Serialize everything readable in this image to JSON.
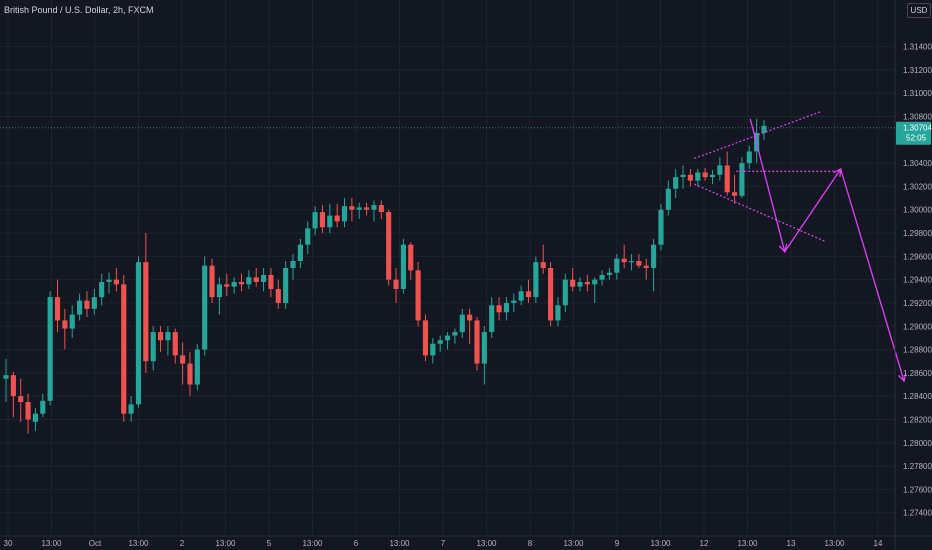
{
  "header": {
    "title": "British Pound / U.S. Dollar, 2h, FXCM"
  },
  "currency_button": {
    "label": "USD"
  },
  "colors": {
    "background": "#131722",
    "grid": "#1e222d",
    "up": "#26a69a",
    "down": "#ef5350",
    "axis_text": "#b2b5be",
    "drawing": "#e040fb",
    "price_line": "#26a69a"
  },
  "chart_data": {
    "type": "candlestick",
    "title": "British Pound / U.S. Dollar, 2h, FXCM",
    "ylim": [
      1.272,
      1.318
    ],
    "y_ticks": [
      "1.31400",
      "1.31200",
      "1.31000",
      "1.30800",
      "1.30400",
      "1.30200",
      "1.30000",
      "1.29800",
      "1.29600",
      "1.29400",
      "1.29200",
      "1.29000",
      "1.28800",
      "1.28600",
      "1.28400",
      "1.28200",
      "1.28000",
      "1.27800",
      "1.27600",
      "1.27400"
    ],
    "y_tick_values": [
      1.314,
      1.312,
      1.31,
      1.308,
      1.304,
      1.302,
      1.3,
      1.298,
      1.296,
      1.294,
      1.292,
      1.29,
      1.288,
      1.286,
      1.284,
      1.282,
      1.28,
      1.278,
      1.276,
      1.274
    ],
    "x_ticks": [
      "30",
      "13:00",
      "Oct",
      "13:00",
      "2",
      "13:00",
      "5",
      "13:00",
      "6",
      "13:00",
      "7",
      "13:00",
      "8",
      "13:00",
      "9",
      "13:00",
      "12",
      "13:00",
      "13",
      "13:00",
      "14"
    ],
    "current_price": "1.30704",
    "countdown": "52:05",
    "grid": true,
    "ohlc": [
      [
        1.2855,
        1.2872,
        1.2835,
        1.2858
      ],
      [
        1.2858,
        1.2861,
        1.2822,
        1.284
      ],
      [
        1.284,
        1.2855,
        1.2818,
        1.2835
      ],
      [
        1.2835,
        1.2842,
        1.2808,
        1.282
      ],
      [
        1.2818,
        1.283,
        1.281,
        1.2825
      ],
      [
        1.2825,
        1.2842,
        1.2822,
        1.2836
      ],
      [
        1.2836,
        1.293,
        1.2832,
        1.2925
      ],
      [
        1.2925,
        1.294,
        1.2895,
        1.2905
      ],
      [
        1.2905,
        1.2915,
        1.288,
        1.2898
      ],
      [
        1.2898,
        1.2918,
        1.289,
        1.291
      ],
      [
        1.291,
        1.2928,
        1.2905,
        1.2922
      ],
      [
        1.2922,
        1.293,
        1.2908,
        1.2915
      ],
      [
        1.2915,
        1.2932,
        1.291,
        1.2925
      ],
      [
        1.2925,
        1.2945,
        1.2918,
        1.2938
      ],
      [
        1.2938,
        1.2946,
        1.2928,
        1.294
      ],
      [
        1.294,
        1.295,
        1.293,
        1.2936
      ],
      [
        1.2936,
        1.2944,
        1.2818,
        1.2825
      ],
      [
        1.2825,
        1.284,
        1.2818,
        1.2833
      ],
      [
        1.2833,
        1.296,
        1.283,
        1.2955
      ],
      [
        1.2955,
        1.298,
        1.286,
        1.287
      ],
      [
        1.287,
        1.29,
        1.2862,
        1.2895
      ],
      [
        1.2895,
        1.29,
        1.2878,
        1.2888
      ],
      [
        1.2888,
        1.29,
        1.2875,
        1.2895
      ],
      [
        1.2895,
        1.2898,
        1.2868,
        1.2875
      ],
      [
        1.2875,
        1.2886,
        1.285,
        1.2868
      ],
      [
        1.2868,
        1.2878,
        1.284,
        1.285
      ],
      [
        1.285,
        1.2885,
        1.2845,
        1.288
      ],
      [
        1.288,
        1.296,
        1.2875,
        1.2952
      ],
      [
        1.2952,
        1.2958,
        1.292,
        1.2925
      ],
      [
        1.2925,
        1.2942,
        1.291,
        1.2936
      ],
      [
        1.2936,
        1.2945,
        1.2926,
        1.2934
      ],
      [
        1.2934,
        1.2942,
        1.2928,
        1.2938
      ],
      [
        1.2938,
        1.2945,
        1.293,
        1.2936
      ],
      [
        1.2936,
        1.2948,
        1.2932,
        1.2942
      ],
      [
        1.2942,
        1.295,
        1.2934,
        1.2938
      ],
      [
        1.2938,
        1.295,
        1.293,
        1.2944
      ],
      [
        1.2944,
        1.295,
        1.2925,
        1.2932
      ],
      [
        1.2932,
        1.294,
        1.2915,
        1.292
      ],
      [
        1.292,
        1.2956,
        1.2915,
        1.295
      ],
      [
        1.295,
        1.2962,
        1.294,
        1.2956
      ],
      [
        1.2956,
        1.2975,
        1.295,
        1.297
      ],
      [
        1.297,
        1.299,
        1.2962,
        1.2984
      ],
      [
        1.2984,
        1.3003,
        1.2978,
        1.2998
      ],
      [
        1.2998,
        1.3004,
        1.298,
        1.2985
      ],
      [
        1.2985,
        1.3005,
        1.298,
        1.2995
      ],
      [
        1.2995,
        1.3005,
        1.2985,
        1.299
      ],
      [
        1.299,
        1.301,
        1.2985,
        1.3003
      ],
      [
        1.3003,
        1.301,
        1.299,
        1.3
      ],
      [
        1.3,
        1.3006,
        1.2992,
        1.3002
      ],
      [
        1.3002,
        1.3006,
        1.2995,
        1.3
      ],
      [
        1.3,
        1.3008,
        1.299,
        1.3004
      ],
      [
        1.3004,
        1.3008,
        1.2992,
        1.2998
      ],
      [
        1.2998,
        1.3,
        1.2935,
        1.294
      ],
      [
        1.294,
        1.295,
        1.292,
        1.2932
      ],
      [
        1.2932,
        1.2975,
        1.2928,
        1.297
      ],
      [
        1.297,
        1.2972,
        1.294,
        1.2948
      ],
      [
        1.2948,
        1.2955,
        1.29,
        1.2905
      ],
      [
        1.2905,
        1.291,
        1.287,
        1.2875
      ],
      [
        1.2875,
        1.289,
        1.2868,
        1.2885
      ],
      [
        1.2885,
        1.2892,
        1.2878,
        1.2888
      ],
      [
        1.2888,
        1.2895,
        1.288,
        1.2892
      ],
      [
        1.2892,
        1.2898,
        1.2885,
        1.2895
      ],
      [
        1.2895,
        1.2915,
        1.289,
        1.291
      ],
      [
        1.291,
        1.2915,
        1.2885,
        1.2905
      ],
      [
        1.2905,
        1.2908,
        1.2862,
        1.2868
      ],
      [
        1.2868,
        1.29,
        1.285,
        1.2895
      ],
      [
        1.2895,
        1.2925,
        1.289,
        1.2918
      ],
      [
        1.2918,
        1.2925,
        1.2905,
        1.2912
      ],
      [
        1.2912,
        1.2925,
        1.2905,
        1.292
      ],
      [
        1.292,
        1.2928,
        1.2912,
        1.2922
      ],
      [
        1.2922,
        1.2935,
        1.2918,
        1.293
      ],
      [
        1.293,
        1.294,
        1.292,
        1.2925
      ],
      [
        1.2925,
        1.296,
        1.292,
        1.2955
      ],
      [
        1.2955,
        1.297,
        1.2945,
        1.295
      ],
      [
        1.295,
        1.2955,
        1.29,
        1.2905
      ],
      [
        1.2905,
        1.2925,
        1.29,
        1.2918
      ],
      [
        1.2918,
        1.2945,
        1.2912,
        1.294
      ],
      [
        1.294,
        1.295,
        1.293,
        1.2934
      ],
      [
        1.2934,
        1.2942,
        1.293,
        1.2938
      ],
      [
        1.2938,
        1.2944,
        1.293,
        1.2936
      ],
      [
        1.2936,
        1.2942,
        1.292,
        1.294
      ],
      [
        1.294,
        1.2948,
        1.2935,
        1.2944
      ],
      [
        1.2944,
        1.295,
        1.294,
        1.2946
      ],
      [
        1.2946,
        1.2962,
        1.294,
        1.2958
      ],
      [
        1.2958,
        1.297,
        1.295,
        1.2955
      ],
      [
        1.2955,
        1.2962,
        1.2948,
        1.2956
      ],
      [
        1.2956,
        1.2962,
        1.295,
        1.2952
      ],
      [
        1.2952,
        1.2958,
        1.294,
        1.295
      ],
      [
        1.295,
        1.2975,
        1.293,
        1.297
      ],
      [
        1.297,
        1.3005,
        1.2965,
        1.3
      ],
      [
        1.3,
        1.3025,
        1.2995,
        1.3018
      ],
      [
        1.3018,
        1.3035,
        1.301,
        1.3028
      ],
      [
        1.3028,
        1.3038,
        1.3018,
        1.303
      ],
      [
        1.303,
        1.3035,
        1.302,
        1.3025
      ],
      [
        1.3025,
        1.3035,
        1.302,
        1.3032
      ],
      [
        1.3032,
        1.3036,
        1.3025,
        1.3028
      ],
      [
        1.3028,
        1.3034,
        1.3022,
        1.303
      ],
      [
        1.303,
        1.3045,
        1.3025,
        1.3038
      ],
      [
        1.3038,
        1.305,
        1.3012,
        1.3015
      ],
      [
        1.3015,
        1.303,
        1.3005,
        1.3012
      ],
      [
        1.3012,
        1.3045,
        1.301,
        1.304
      ],
      [
        1.304,
        1.3055,
        1.3035,
        1.305
      ],
      [
        1.305,
        1.3078,
        1.304,
        1.3066
      ],
      [
        1.3066,
        1.3077,
        1.306,
        1.3072
      ]
    ],
    "annotations": {
      "wedge_upper": [
        [
          0.745,
          1.3044
        ],
        [
          0.88,
          1.3084
        ]
      ],
      "wedge_lower": [
        [
          0.745,
          1.3022
        ],
        [
          0.885,
          1.2973
        ]
      ],
      "horizontal_dotted": [
        [
          0.79,
          1.3033
        ],
        [
          0.895,
          1.3033
        ]
      ],
      "arrow_path": [
        [
          0.805,
          1.3078
        ],
        [
          0.842,
          1.2964
        ],
        [
          0.902,
          1.3035
        ],
        [
          0.97,
          1.2853
        ]
      ]
    }
  }
}
